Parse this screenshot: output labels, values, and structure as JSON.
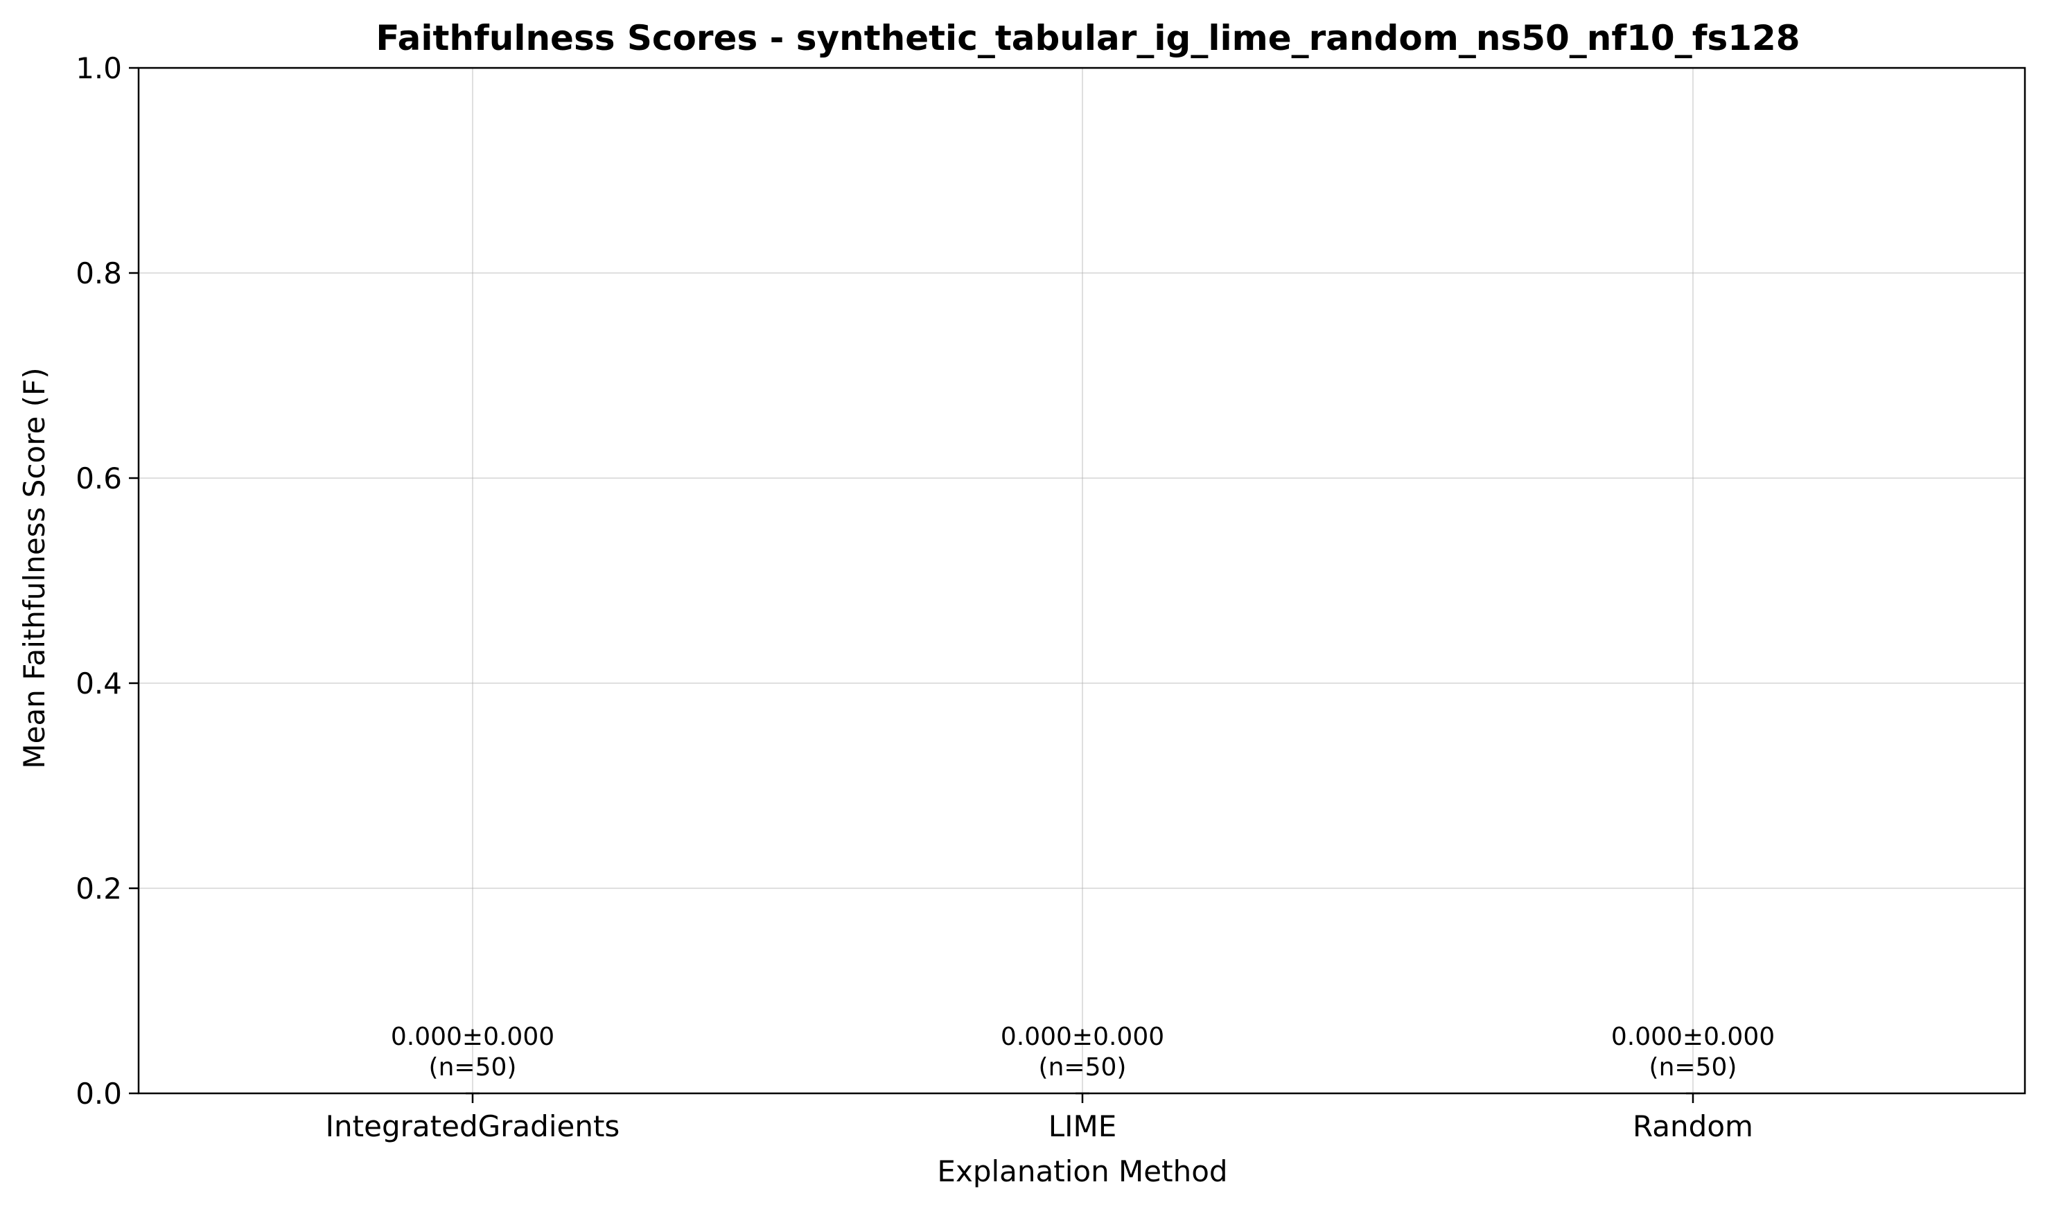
{
  "chart_data": {
    "type": "bar",
    "title": "Faithfulness Scores - synthetic_tabular_ig_lime_random_ns50_nf10_fs128",
    "xlabel": "Explanation Method",
    "ylabel": "Mean Faithfulness Score (F)",
    "categories": [
      "IntegratedGradients",
      "LIME",
      "Random"
    ],
    "values": [
      0.0,
      0.0,
      0.0
    ],
    "errors": [
      0.0,
      0.0,
      0.0
    ],
    "n": [
      50,
      50,
      50
    ],
    "data_labels": [
      {
        "line1": "0.000±0.000",
        "line2": "(n=50)"
      },
      {
        "line1": "0.000±0.000",
        "line2": "(n=50)"
      },
      {
        "line1": "0.000±0.000",
        "line2": "(n=50)"
      }
    ],
    "ylim": [
      0,
      1.0
    ],
    "yticks": [
      0.0,
      0.2,
      0.4,
      0.6,
      0.8,
      1.0
    ],
    "ytick_labels": [
      "0.0",
      "0.2",
      "0.4",
      "0.6",
      "0.8",
      "1.0"
    ],
    "grid": true,
    "legend": "none"
  }
}
